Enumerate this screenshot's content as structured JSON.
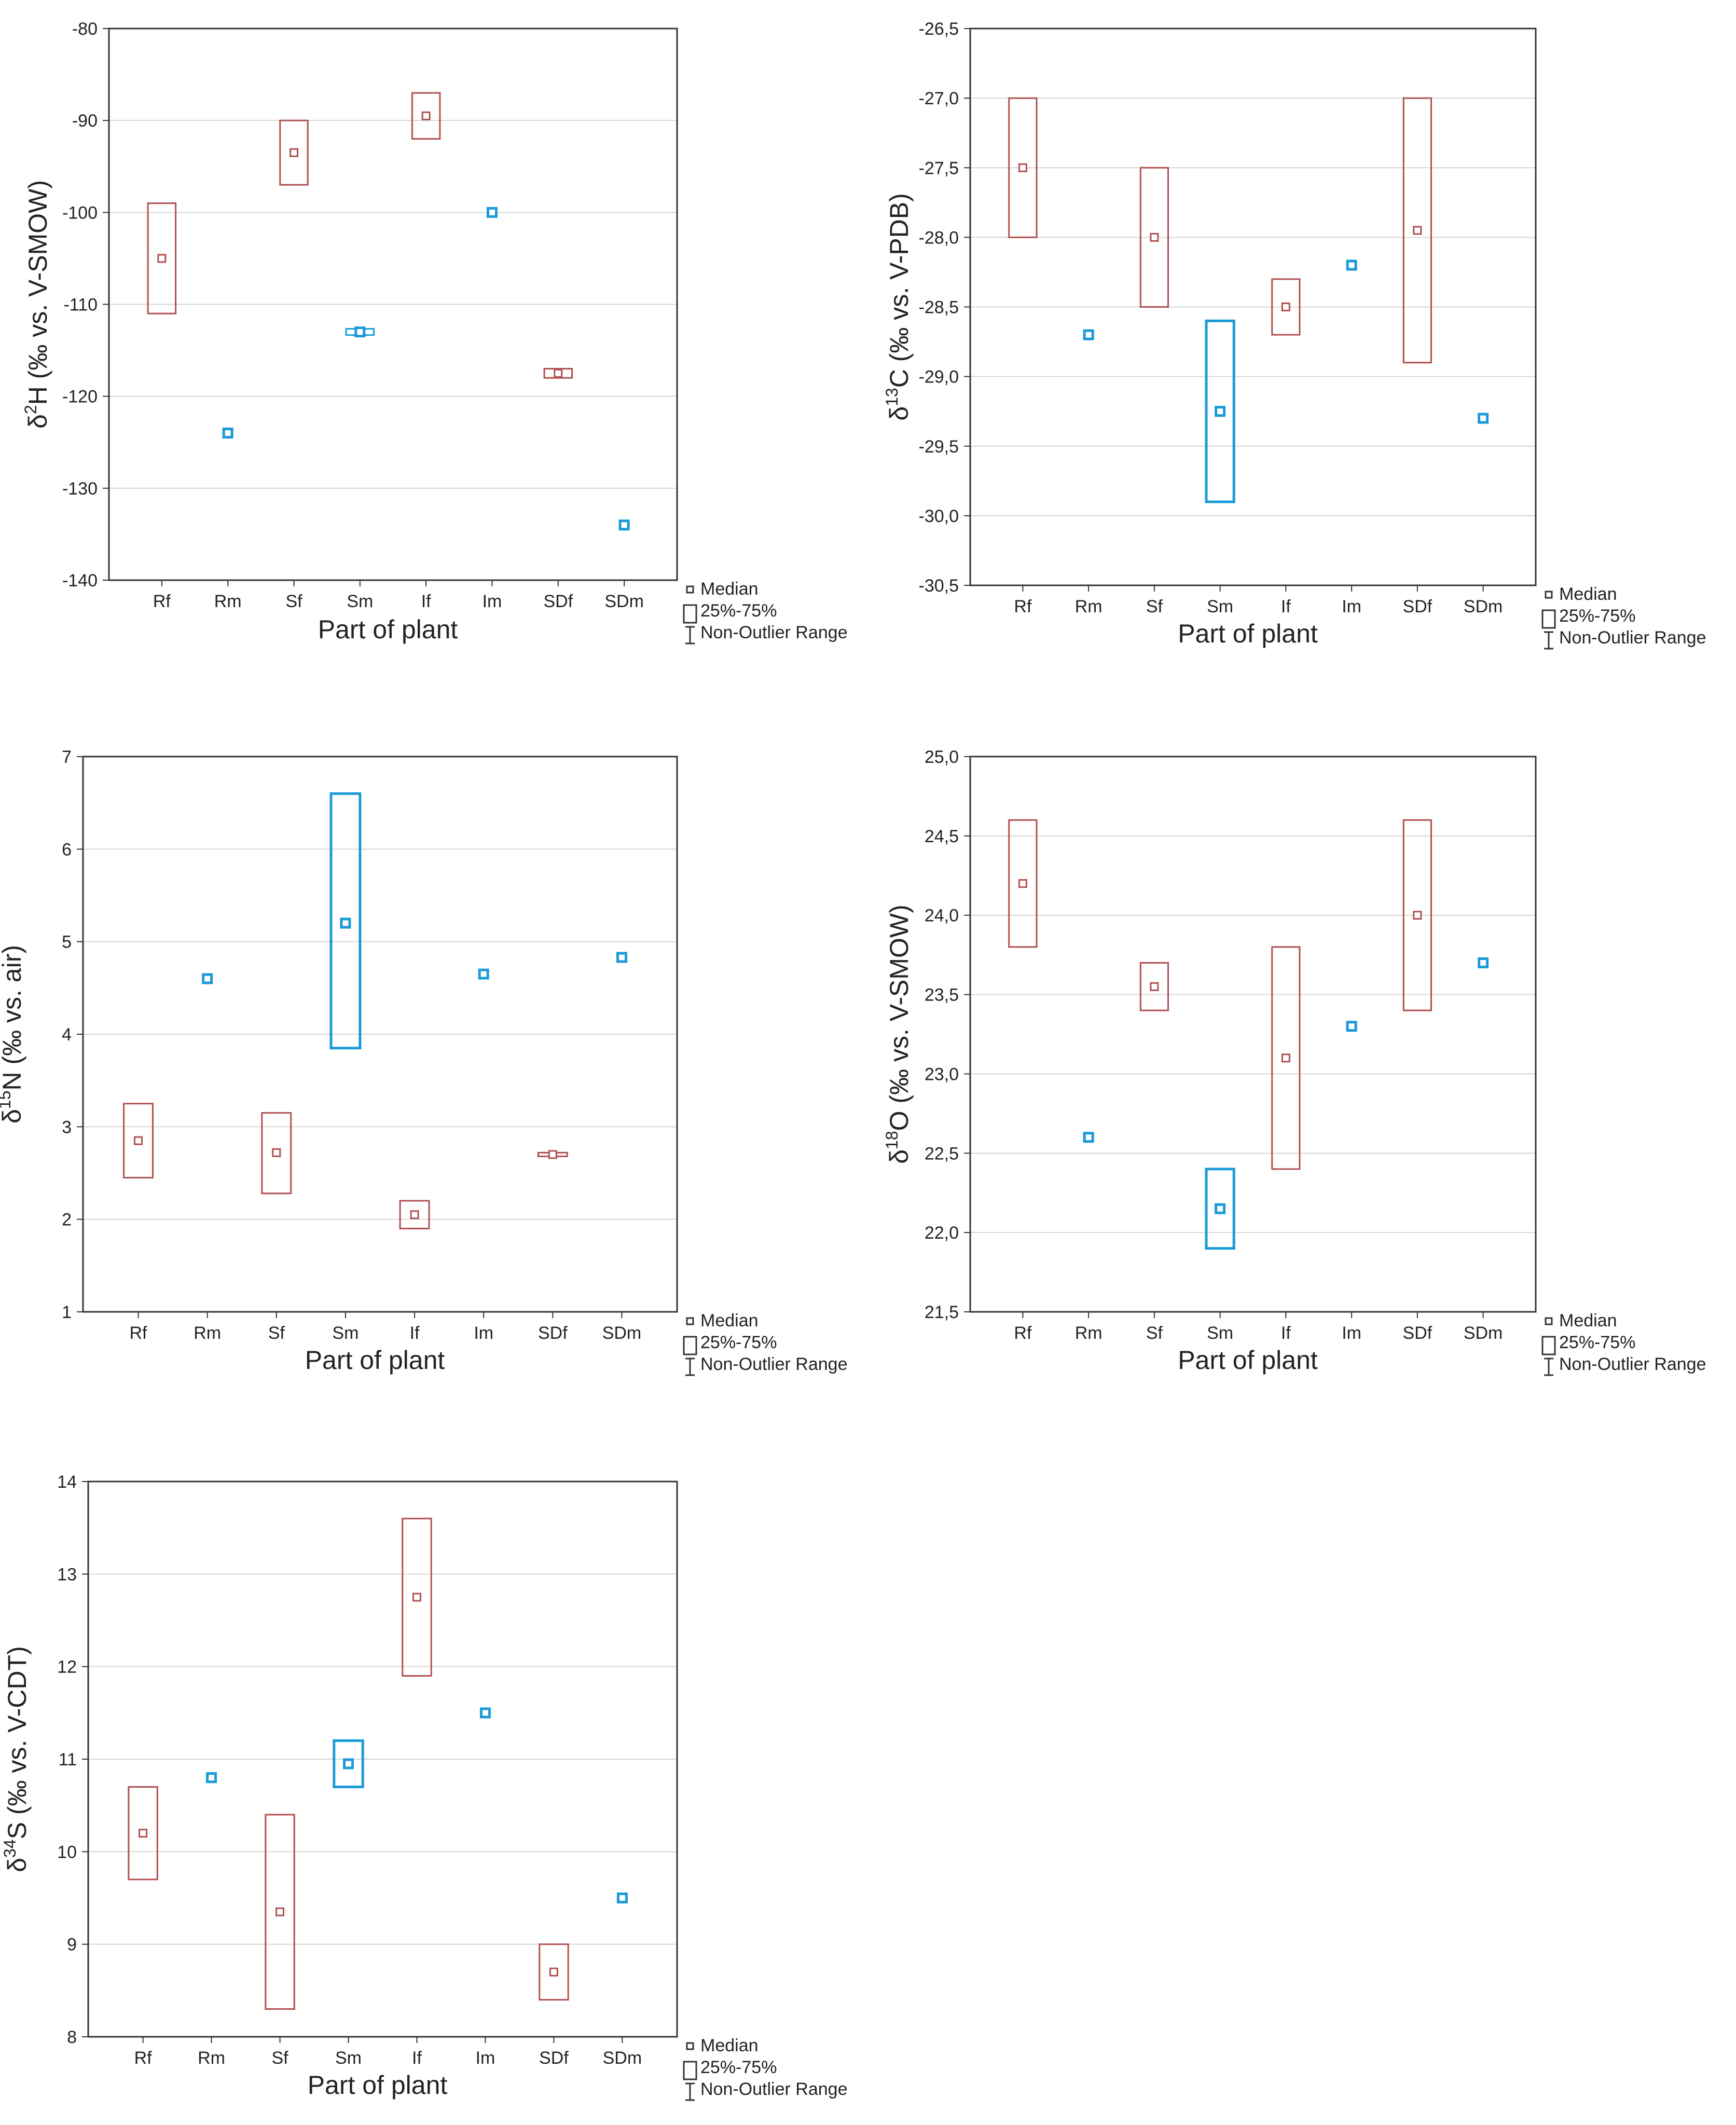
{
  "legend": {
    "median": "Median",
    "box": "25%-75%",
    "range": "Non-Outlier Range"
  },
  "colors": {
    "f_series": "#b05050",
    "m_series": "#1a9ad8",
    "grid": "#d6d6d6",
    "frame": "#333333"
  },
  "chart_data": [
    {
      "type": "box",
      "xlabel": "Part of plant",
      "ylabel_prefix": "δ",
      "ylabel_sup": "2",
      "ylabel_rest": "H (‰ vs. V-SMOW)",
      "ylim": [
        -140,
        -80
      ],
      "yticks": [
        "-80",
        "-90",
        "-100",
        "-110",
        "-120",
        "-130",
        "-140"
      ],
      "tick_values": [
        -80,
        -90,
        -100,
        -110,
        -120,
        -130,
        -140
      ],
      "categories": [
        "Rf",
        "Rm",
        "Sf",
        "Sm",
        "If",
        "Im",
        "SDf",
        "SDm"
      ],
      "series_type": [
        "f",
        "m",
        "f",
        "m",
        "f",
        "m",
        "f",
        "m"
      ],
      "medians": [
        -105,
        -124,
        -93.5,
        -113,
        -89.5,
        -100,
        -117.5,
        -134
      ],
      "q1": [
        -111,
        null,
        -97,
        -113,
        -92,
        null,
        -118,
        null
      ],
      "q3": [
        -99,
        null,
        -90,
        -113,
        -87,
        null,
        -117,
        null
      ]
    },
    {
      "type": "box",
      "xlabel": "Part of plant",
      "ylabel_prefix": "δ",
      "ylabel_sup": "13",
      "ylabel_rest": "C (‰ vs. V-PDB)",
      "ylim": [
        -30.5,
        -26.5
      ],
      "yticks": [
        "-26,5",
        "-27,0",
        "-27,5",
        "-28,0",
        "-28,5",
        "-29,0",
        "-29,5",
        "-30,0",
        "-30,5"
      ],
      "tick_values": [
        -26.5,
        -27.0,
        -27.5,
        -28.0,
        -28.5,
        -29.0,
        -29.5,
        -30.0,
        -30.5
      ],
      "categories": [
        "Rf",
        "Rm",
        "Sf",
        "Sm",
        "If",
        "Im",
        "SDf",
        "SDm"
      ],
      "series_type": [
        "f",
        "m",
        "f",
        "m",
        "f",
        "m",
        "f",
        "m"
      ],
      "medians": [
        -27.5,
        -28.7,
        -28.0,
        -29.25,
        -28.5,
        -28.2,
        -27.95,
        -29.3
      ],
      "q1": [
        -28.0,
        null,
        -28.5,
        -29.9,
        -28.7,
        null,
        -28.9,
        null
      ],
      "q3": [
        -27.0,
        null,
        -27.5,
        -28.6,
        -28.3,
        null,
        -27.0,
        null
      ]
    },
    {
      "type": "box",
      "xlabel": "Part of plant",
      "ylabel_prefix": "δ",
      "ylabel_sup": "15",
      "ylabel_rest": "N (‰ vs. air)",
      "ylim": [
        1,
        7
      ],
      "yticks": [
        "7",
        "6",
        "5",
        "4",
        "3",
        "2",
        "1"
      ],
      "tick_values": [
        7,
        6,
        5,
        4,
        3,
        2,
        1
      ],
      "categories": [
        "Rf",
        "Rm",
        "Sf",
        "Sm",
        "If",
        "Im",
        "SDf",
        "SDm"
      ],
      "series_type": [
        "f",
        "m",
        "f",
        "m",
        "f",
        "m",
        "f",
        "m"
      ],
      "medians": [
        2.85,
        4.6,
        2.72,
        5.2,
        2.05,
        4.65,
        2.7,
        4.83
      ],
      "q1": [
        2.45,
        null,
        2.28,
        3.85,
        1.9,
        null,
        2.68,
        null
      ],
      "q3": [
        3.25,
        null,
        3.15,
        6.6,
        2.2,
        null,
        2.72,
        null
      ]
    },
    {
      "type": "box",
      "xlabel": "Part of plant",
      "ylabel_prefix": "δ",
      "ylabel_sup": "18",
      "ylabel_rest": "O (‰ vs. V-SMOW)",
      "ylim": [
        21.5,
        25.0
      ],
      "yticks": [
        "25,0",
        "24,5",
        "24,0",
        "23,5",
        "23,0",
        "22,5",
        "22,0",
        "21,5"
      ],
      "tick_values": [
        25.0,
        24.5,
        24.0,
        23.5,
        23.0,
        22.5,
        22.0,
        21.5
      ],
      "categories": [
        "Rf",
        "Rm",
        "Sf",
        "Sm",
        "If",
        "Im",
        "SDf",
        "SDm"
      ],
      "series_type": [
        "f",
        "m",
        "f",
        "m",
        "f",
        "m",
        "f",
        "m"
      ],
      "medians": [
        24.2,
        22.6,
        23.55,
        22.15,
        23.1,
        23.3,
        24.0,
        23.7
      ],
      "q1": [
        23.8,
        null,
        23.4,
        21.9,
        22.4,
        null,
        23.4,
        null
      ],
      "q3": [
        24.6,
        null,
        23.7,
        22.4,
        23.8,
        null,
        24.6,
        null
      ]
    },
    {
      "type": "box",
      "xlabel": "Part of plant",
      "ylabel_prefix": "δ",
      "ylabel_sup": "34",
      "ylabel_rest": "S (‰ vs. V-CDT)",
      "ylim": [
        8,
        14
      ],
      "yticks": [
        "14",
        "13",
        "12",
        "11",
        "10",
        "9",
        "8"
      ],
      "tick_values": [
        14,
        13,
        12,
        11,
        10,
        9,
        8
      ],
      "categories": [
        "Rf",
        "Rm",
        "Sf",
        "Sm",
        "If",
        "Im",
        "SDf",
        "SDm"
      ],
      "series_type": [
        "f",
        "m",
        "f",
        "m",
        "f",
        "m",
        "f",
        "m"
      ],
      "medians": [
        10.2,
        10.8,
        9.35,
        10.95,
        12.75,
        11.5,
        8.7,
        9.5
      ],
      "q1": [
        9.7,
        null,
        8.3,
        10.7,
        11.9,
        null,
        8.4,
        null
      ],
      "q3": [
        10.7,
        null,
        10.4,
        11.2,
        13.6,
        null,
        9.0,
        null
      ]
    }
  ]
}
